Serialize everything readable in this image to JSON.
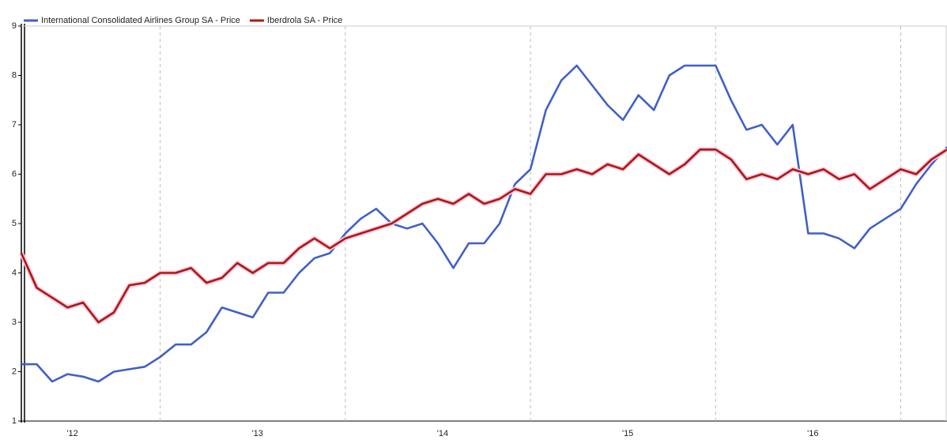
{
  "chart_data": {
    "type": "line",
    "categories": [
      null,
      null,
      null,
      "'12",
      null,
      null,
      null,
      null,
      null,
      null,
      null,
      null,
      null,
      null,
      null,
      "'13",
      null,
      null,
      null,
      null,
      null,
      null,
      null,
      null,
      null,
      null,
      null,
      "'14",
      null,
      null,
      null,
      null,
      null,
      null,
      null,
      null,
      null,
      null,
      null,
      "'15",
      null,
      null,
      null,
      null,
      null,
      null,
      null,
      null,
      null,
      null,
      null,
      "'16",
      null,
      null,
      null,
      null,
      null,
      null,
      null,
      null,
      null
    ],
    "series": [
      {
        "name": "International Consolidated Airlines Group SA - Price",
        "color": "#4060c8",
        "values": [
          2.15,
          2.15,
          1.8,
          1.95,
          1.9,
          1.8,
          2.0,
          2.05,
          2.1,
          2.3,
          2.55,
          2.55,
          2.8,
          3.3,
          3.2,
          3.1,
          3.6,
          3.6,
          4.0,
          4.3,
          4.4,
          4.8,
          5.1,
          5.3,
          5.0,
          4.9,
          5.0,
          4.6,
          4.1,
          4.6,
          4.6,
          5.0,
          5.8,
          6.1,
          7.3,
          7.9,
          8.2,
          7.8,
          7.4,
          7.1,
          7.6,
          7.3,
          8.0,
          8.2,
          8.2,
          8.2,
          7.5,
          6.9,
          7.0,
          6.6,
          7.0,
          4.8,
          4.8,
          4.7,
          4.5,
          4.9,
          5.1,
          5.3,
          5.8,
          6.2,
          6.55
        ]
      },
      {
        "name": "Iberdrola SA - Price",
        "color": "#b01808",
        "values": [
          4.4,
          3.7,
          3.5,
          3.3,
          3.4,
          3.0,
          3.2,
          3.75,
          3.8,
          4.0,
          4.0,
          4.1,
          3.8,
          3.9,
          4.2,
          4.0,
          4.2,
          4.2,
          4.5,
          4.7,
          4.5,
          4.7,
          4.8,
          4.9,
          5.0,
          5.2,
          5.4,
          5.5,
          5.4,
          5.6,
          5.4,
          5.5,
          5.7,
          5.6,
          6.0,
          6.0,
          6.1,
          6.0,
          6.2,
          6.1,
          6.4,
          6.2,
          6.0,
          6.2,
          6.5,
          6.5,
          6.3,
          5.9,
          6.0,
          5.9,
          6.1,
          6.0,
          6.1,
          5.9,
          6.0,
          5.7,
          5.9,
          6.1,
          6.0,
          6.3,
          6.5
        ]
      }
    ],
    "ylim": [
      1,
      9
    ],
    "yticks": [
      1,
      2,
      3,
      4,
      5,
      6,
      7,
      8,
      9
    ],
    "legend": "top-left"
  }
}
